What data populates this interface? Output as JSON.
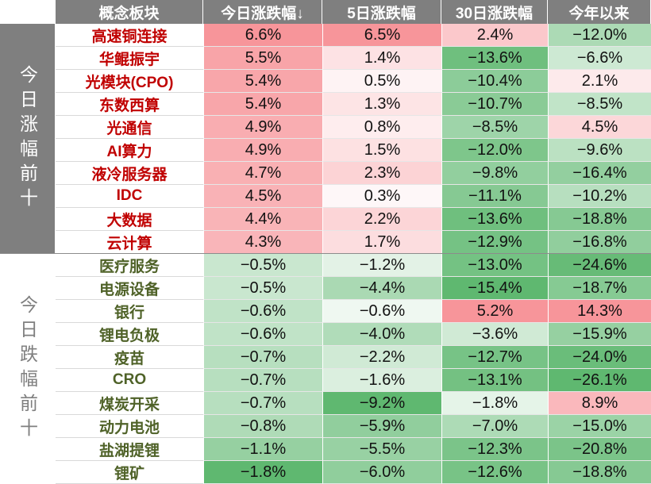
{
  "chart_data": {
    "type": "table",
    "columns": [
      "概念板块",
      "今日涨跌幅↓",
      "5日涨跌幅",
      "30日涨跌幅",
      "今年以来"
    ],
    "groups": [
      {
        "label": "今日涨幅前十",
        "name_color": "#c00000",
        "group_color": "#7f7f7f",
        "rows": [
          {
            "name": "高速铜连接",
            "values": [
              "6.6%",
              "6.5%",
              "2.4%",
              "−12.0%"
            ],
            "nums": [
              6.6,
              6.5,
              2.4,
              -12.0
            ]
          },
          {
            "name": "华鲲振宇",
            "values": [
              "5.5%",
              "1.4%",
              "−13.6%",
              "−6.6%"
            ],
            "nums": [
              5.5,
              1.4,
              -13.6,
              -6.6
            ]
          },
          {
            "name": "光模块(CPO)",
            "values": [
              "5.4%",
              "0.5%",
              "−10.4%",
              "2.1%"
            ],
            "nums": [
              5.4,
              0.5,
              -10.4,
              2.1
            ]
          },
          {
            "name": "东数西算",
            "values": [
              "5.4%",
              "1.3%",
              "−10.7%",
              "−8.5%"
            ],
            "nums": [
              5.4,
              1.3,
              -10.7,
              -8.5
            ]
          },
          {
            "name": "光通信",
            "values": [
              "4.9%",
              "0.8%",
              "−8.5%",
              "4.5%"
            ],
            "nums": [
              4.9,
              0.8,
              -8.5,
              4.5
            ]
          },
          {
            "name": "AI算力",
            "values": [
              "4.9%",
              "1.5%",
              "−12.0%",
              "−9.6%"
            ],
            "nums": [
              4.9,
              1.5,
              -12.0,
              -9.6
            ]
          },
          {
            "name": "液冷服务器",
            "values": [
              "4.7%",
              "2.3%",
              "−9.8%",
              "−16.4%"
            ],
            "nums": [
              4.7,
              2.3,
              -9.8,
              -16.4
            ]
          },
          {
            "name": "IDC",
            "values": [
              "4.5%",
              "0.3%",
              "−11.1%",
              "−10.2%"
            ],
            "nums": [
              4.5,
              0.3,
              -11.1,
              -10.2
            ]
          },
          {
            "name": "大数据",
            "values": [
              "4.4%",
              "2.2%",
              "−13.6%",
              "−18.8%"
            ],
            "nums": [
              4.4,
              2.2,
              -13.6,
              -18.8
            ]
          },
          {
            "name": "云计算",
            "values": [
              "4.3%",
              "1.7%",
              "−12.9%",
              "−16.8%"
            ],
            "nums": [
              4.3,
              1.7,
              -12.9,
              -16.8
            ]
          }
        ]
      },
      {
        "label": "今日跌幅前十",
        "name_color": "#4f6228",
        "group_color": "#ffffff",
        "rows": [
          {
            "name": "医疗服务",
            "values": [
              "−0.5%",
              "−1.2%",
              "−13.0%",
              "−24.6%"
            ],
            "nums": [
              -0.5,
              -1.2,
              -13.0,
              -24.6
            ]
          },
          {
            "name": "电源设备",
            "values": [
              "−0.5%",
              "−4.4%",
              "−15.4%",
              "−18.7%"
            ],
            "nums": [
              -0.5,
              -4.4,
              -15.4,
              -18.7
            ]
          },
          {
            "name": "银行",
            "values": [
              "−0.6%",
              "−0.6%",
              "5.2%",
              "14.3%"
            ],
            "nums": [
              -0.6,
              -0.6,
              5.2,
              14.3
            ]
          },
          {
            "name": "锂电负极",
            "values": [
              "−0.6%",
              "−4.0%",
              "−3.6%",
              "−15.9%"
            ],
            "nums": [
              -0.6,
              -4.0,
              -3.6,
              -15.9
            ]
          },
          {
            "name": "疫苗",
            "values": [
              "−0.7%",
              "−2.2%",
              "−12.7%",
              "−24.0%"
            ],
            "nums": [
              -0.7,
              -2.2,
              -12.7,
              -24.0
            ]
          },
          {
            "name": "CRO",
            "values": [
              "−0.7%",
              "−1.6%",
              "−13.1%",
              "−26.1%"
            ],
            "nums": [
              -0.7,
              -1.6,
              -13.1,
              -26.1
            ]
          },
          {
            "name": "煤炭开采",
            "values": [
              "−0.7%",
              "−9.2%",
              "−1.8%",
              "8.9%"
            ],
            "nums": [
              -0.7,
              -9.2,
              -1.8,
              8.9
            ]
          },
          {
            "name": "动力电池",
            "values": [
              "−0.8%",
              "−5.9%",
              "−7.0%",
              "−15.0%"
            ],
            "nums": [
              -0.8,
              -5.9,
              -7.0,
              -15.0
            ]
          },
          {
            "name": "盐湖提锂",
            "values": [
              "−1.1%",
              "−5.5%",
              "−12.3%",
              "−20.8%"
            ],
            "nums": [
              -1.1,
              -5.5,
              -12.3,
              -20.8
            ]
          },
          {
            "name": "锂矿",
            "values": [
              "−1.8%",
              "−6.0%",
              "−12.6%",
              "−18.8%"
            ],
            "nums": [
              -1.8,
              -6.0,
              -12.6,
              -18.8
            ]
          }
        ]
      }
    ],
    "colors": {
      "header_bg": "#7f7f7f",
      "header_text": "#ffffff",
      "positive_max": "#f7959a",
      "negative_max": "#5fb870",
      "neutral": "#ffffff"
    }
  }
}
